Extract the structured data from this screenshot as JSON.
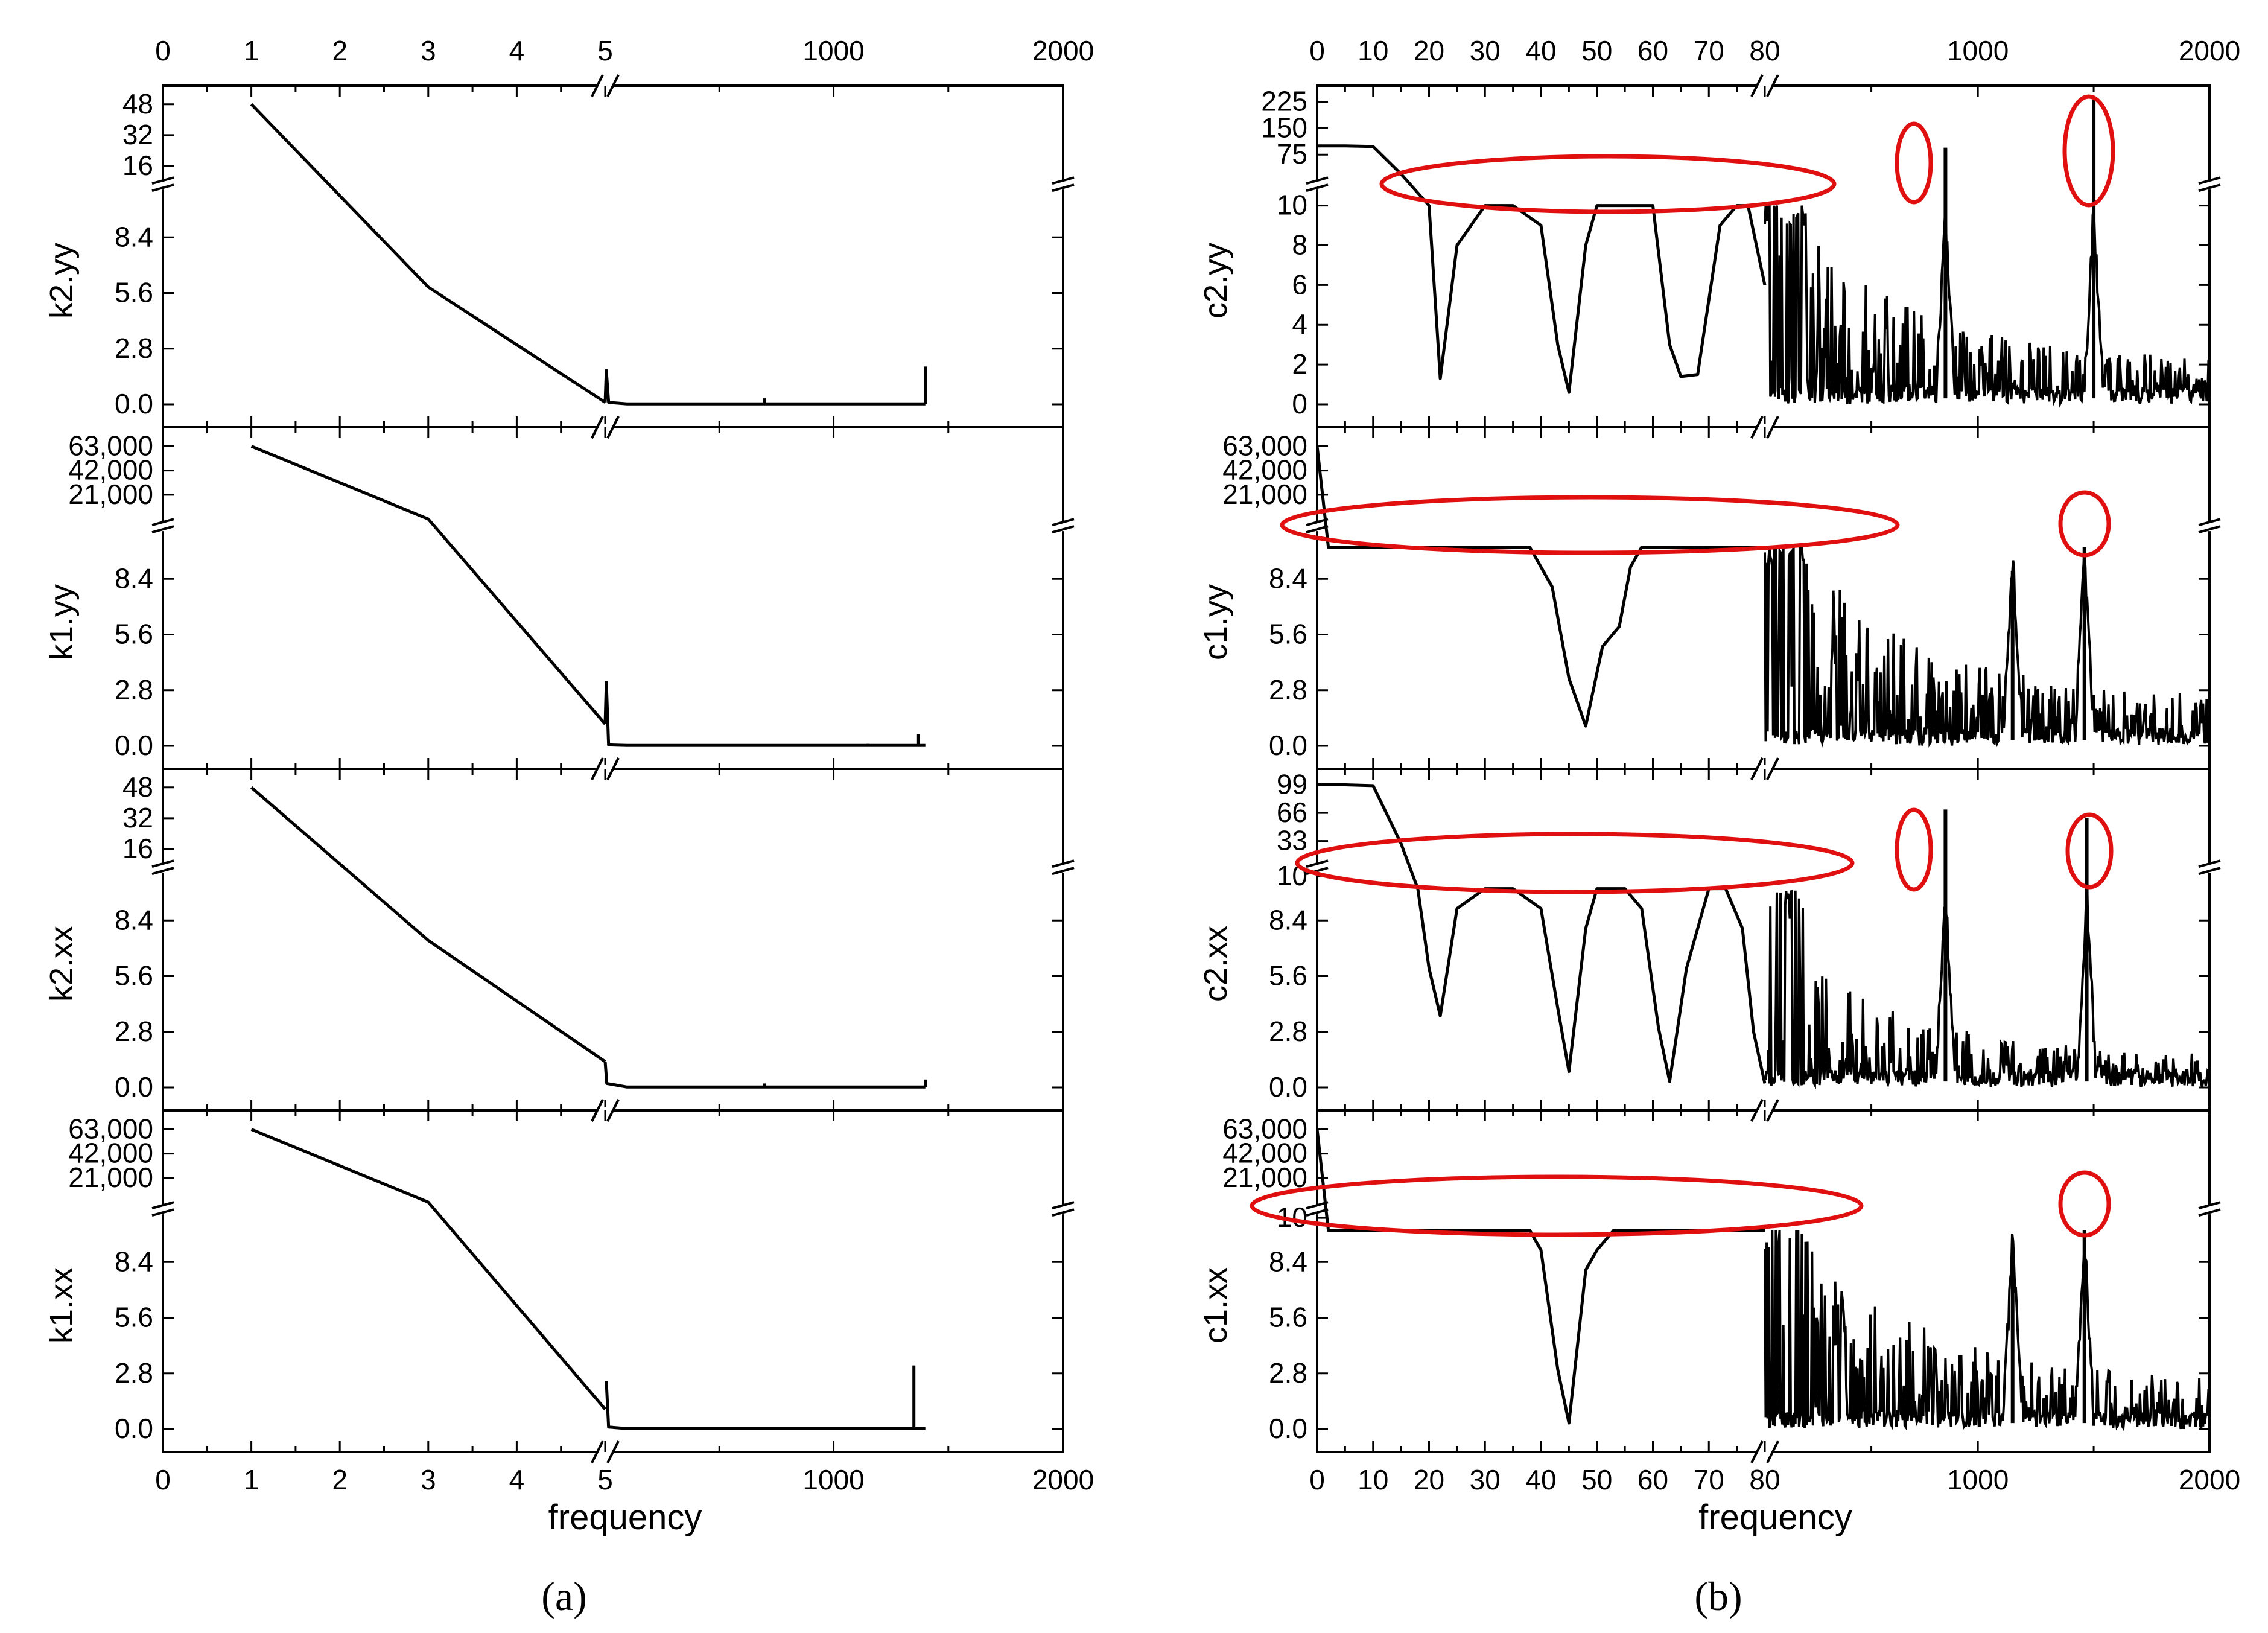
{
  "figure": {
    "panel_a_label": "(a)",
    "panel_b_label": "(b)",
    "xlabel": "frequency"
  },
  "chart_data": [
    {
      "panel": "a",
      "type": "line",
      "x_axis": {
        "label": "frequency",
        "broken": true,
        "left_ticks": [
          "0",
          "1",
          "2",
          "3",
          "4",
          "5"
        ],
        "left_range": [
          0,
          5
        ],
        "right_ticks": [
          "1000",
          "2000"
        ],
        "right_range": [
          5,
          2000
        ]
      },
      "subplots": [
        {
          "ylabel": "k2.yy",
          "y_lower_ticks": [
            "0.0",
            "2.8",
            "5.6",
            "8.4"
          ],
          "y_lower_range": [
            0,
            10.5
          ],
          "y_upper_ticks": [
            "16",
            "32",
            "48"
          ],
          "y_upper_range": [
            10,
            52
          ],
          "left": [
            [
              1,
              48
            ],
            [
              3,
              5.9
            ],
            [
              5,
              0.1
            ]
          ],
          "right": [
            [
              5,
              0.1
            ],
            [
              10,
              1.7
            ],
            [
              20,
              0.1
            ],
            [
              100,
              0.02
            ],
            [
              700,
              0.02
            ],
            [
              1400,
              0.02
            ]
          ],
          "spikes": [
            [
              700,
              0.3
            ],
            [
              1400,
              1.9
            ]
          ]
        },
        {
          "ylabel": "k1.yy",
          "y_lower_ticks": [
            "0.0",
            "2.8",
            "5.6",
            "8.4"
          ],
          "y_lower_range": [
            0,
            10.5
          ],
          "y_upper_ticks": [
            "21,000",
            "42,000",
            "63,000"
          ],
          "y_upper_range": [
            10,
            70000
          ],
          "left": [
            [
              1,
              63000
            ],
            [
              3,
              10.3
            ],
            [
              5,
              1.1
            ]
          ],
          "right": [
            [
              5,
              1.1
            ],
            [
              10,
              3.2
            ],
            [
              20,
              0.05
            ],
            [
              100,
              0.02
            ],
            [
              1400,
              0.02
            ]
          ],
          "spikes": [
            [
              1150,
              0.1
            ],
            [
              1370,
              0.6
            ]
          ]
        },
        {
          "ylabel": "k2.xx",
          "y_lower_ticks": [
            "0.0",
            "2.8",
            "5.6",
            "8.4"
          ],
          "y_lower_range": [
            0,
            10.5
          ],
          "y_upper_ticks": [
            "16",
            "32",
            "48"
          ],
          "y_upper_range": [
            10,
            52
          ],
          "left": [
            [
              1,
              48
            ],
            [
              3,
              7.4
            ],
            [
              5,
              1.3
            ]
          ],
          "right": [
            [
              5,
              1.3
            ],
            [
              12,
              0.2
            ],
            [
              100,
              0.02
            ],
            [
              1400,
              0.02
            ]
          ],
          "spikes": [
            [
              700,
              0.2
            ],
            [
              1400,
              0.4
            ]
          ]
        },
        {
          "ylabel": "k1.xx",
          "y_lower_ticks": [
            "0.0",
            "2.8",
            "5.6",
            "8.4"
          ],
          "y_lower_range": [
            0,
            10.5
          ],
          "y_upper_ticks": [
            "21,000",
            "42,000",
            "63,000"
          ],
          "y_upper_range": [
            10,
            70000
          ],
          "left": [
            [
              1,
              63000
            ],
            [
              3,
              10.3
            ],
            [
              5,
              1.0
            ]
          ],
          "right": [
            [
              10,
              2.4
            ],
            [
              20,
              0.1
            ],
            [
              100,
              0.02
            ],
            [
              1400,
              0.02
            ]
          ],
          "spikes": [
            [
              1350,
              3.2
            ]
          ]
        }
      ]
    },
    {
      "panel": "b",
      "type": "line",
      "x_axis": {
        "label": "frequency",
        "broken": true,
        "left_ticks": [
          "0",
          "10",
          "20",
          "30",
          "40",
          "50",
          "60",
          "70",
          "80"
        ],
        "left_range": [
          0,
          80
        ],
        "right_ticks": [
          "1000",
          "2000"
        ],
        "right_range": [
          80,
          2000
        ]
      },
      "subplots": [
        {
          "ylabel": "c2.yy",
          "y_lower_ticks": [
            "0",
            "2",
            "4",
            "6",
            "8",
            "10"
          ],
          "y_lower_range": [
            0,
            10.5
          ],
          "y_upper_ticks": [
            "75",
            "150",
            "225"
          ],
          "y_upper_range": [
            10,
            240
          ],
          "left": [
            [
              0,
              100
            ],
            [
              5,
              100
            ],
            [
              10,
              98
            ],
            [
              15,
              20
            ],
            [
              20,
              10
            ],
            [
              22,
              1.3
            ],
            [
              25,
              8
            ],
            [
              30,
              10
            ],
            [
              35,
              10
            ],
            [
              40,
              9
            ],
            [
              43,
              3
            ],
            [
              45,
              0.6
            ],
            [
              48,
              8
            ],
            [
              50,
              10
            ],
            [
              55,
              10
            ],
            [
              60,
              10
            ],
            [
              63,
              3
            ],
            [
              65,
              1.4
            ],
            [
              68,
              1.5
            ],
            [
              72,
              9
            ],
            [
              75,
              10
            ],
            [
              77,
              10
            ],
            [
              80,
              6
            ]
          ],
          "noise_scale": 3,
          "peaks": [
            [
              860,
              95
            ],
            [
              1500,
              230
            ]
          ]
        },
        {
          "ylabel": "c1.yy",
          "y_lower_ticks": [
            "0.0",
            "2.8",
            "5.6",
            "8.4"
          ],
          "y_lower_range": [
            0,
            10.5
          ],
          "y_upper_ticks": [
            "21,000",
            "42,000",
            "63,000"
          ],
          "y_upper_range": [
            10,
            70000
          ],
          "left": [
            [
              0,
              63000
            ],
            [
              2,
              10
            ],
            [
              38,
              10
            ],
            [
              42,
              8
            ],
            [
              45,
              3.4
            ],
            [
              48,
              1
            ],
            [
              51,
              5
            ],
            [
              54,
              6
            ],
            [
              56,
              9
            ],
            [
              58,
              10
            ],
            [
              80,
              10
            ]
          ],
          "noise_scale": 3.3,
          "peaks": [
            [
              1150,
              8.8
            ],
            [
              1460,
              10
            ]
          ]
        },
        {
          "ylabel": "c2.xx",
          "y_lower_ticks": [
            "0.0",
            "2.8",
            "5.6",
            "8.4"
          ],
          "y_lower_range": [
            0,
            10.5
          ],
          "y_upper_ticks": [
            "10",
            "33",
            "66",
            "99"
          ],
          "y_upper_range": [
            10,
            105
          ],
          "left": [
            [
              0,
              99
            ],
            [
              5,
              99
            ],
            [
              10,
              98
            ],
            [
              15,
              30
            ],
            [
              18,
              10
            ],
            [
              20,
              6
            ],
            [
              22,
              3.6
            ],
            [
              25,
              9
            ],
            [
              30,
              10
            ],
            [
              35,
              10
            ],
            [
              40,
              9
            ],
            [
              43,
              4
            ],
            [
              45,
              0.8
            ],
            [
              48,
              8
            ],
            [
              50,
              10
            ],
            [
              55,
              10
            ],
            [
              58,
              9
            ],
            [
              61,
              3
            ],
            [
              63,
              0.3
            ],
            [
              66,
              6
            ],
            [
              70,
              10
            ],
            [
              73,
              10
            ],
            [
              76,
              8
            ],
            [
              78,
              2.8
            ],
            [
              80,
              0.2
            ]
          ],
          "noise_scale": 2.2,
          "peaks": [
            [
              860,
              70
            ],
            [
              1470,
              60
            ]
          ]
        },
        {
          "ylabel": "c1.xx",
          "y_lower_ticks": [
            "0.0",
            "2.8",
            "5.6",
            "8.4"
          ],
          "y_lower_range": [
            0,
            10.5
          ],
          "y_upper_ticks": [
            "10",
            "21,000",
            "42,000",
            "63,000"
          ],
          "y_upper_range": [
            10,
            70000
          ],
          "left": [
            [
              0,
              63000
            ],
            [
              2,
              10
            ],
            [
              38,
              10
            ],
            [
              40,
              9
            ],
            [
              43,
              3
            ],
            [
              45,
              0.3
            ],
            [
              48,
              8
            ],
            [
              50,
              9
            ],
            [
              53,
              10
            ],
            [
              80,
              10
            ]
          ],
          "noise_scale": 3.3,
          "peaks": [
            [
              1150,
              8.8
            ],
            [
              1460,
              10
            ]
          ]
        }
      ],
      "annotations": "red ellipses highlighting the capped region near 10 in each subplot and circles around the high peaks"
    }
  ]
}
